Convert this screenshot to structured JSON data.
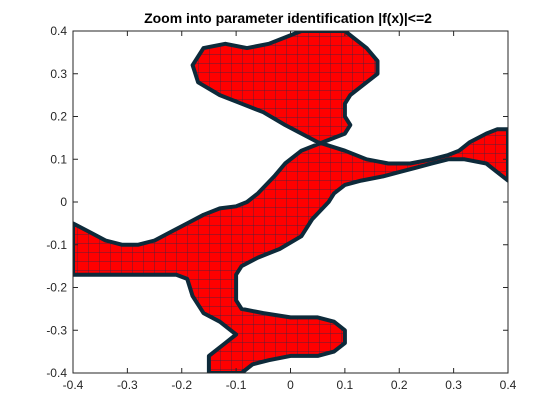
{
  "chart_data": {
    "type": "area",
    "title": "Zoom into parameter identification |f(x)|<=2",
    "xlabel": "",
    "ylabel": "",
    "xlim": [
      -0.4,
      0.4
    ],
    "ylim": [
      -0.4,
      0.4
    ],
    "x_ticks": [
      -0.4,
      -0.3,
      -0.2,
      -0.1,
      0,
      0.1,
      0.2,
      0.3,
      0.4
    ],
    "x_tick_labels": [
      "-0.4",
      "-0.3",
      "-0.2",
      "-0.1",
      "0",
      "0.1",
      "0.2",
      "0.3",
      "0.4"
    ],
    "y_ticks": [
      -0.4,
      -0.3,
      -0.2,
      -0.1,
      0,
      0.1,
      0.2,
      0.3,
      0.4
    ],
    "y_tick_labels": [
      "-0.4",
      "-0.3",
      "-0.2",
      "-0.1",
      "0",
      "0.1",
      "0.2",
      "0.3",
      "0.4"
    ],
    "grid": false,
    "fill_color": "#ff0000",
    "box_edge_color": "#1f2a44",
    "boundary_color": "#0d2a3a",
    "region": {
      "name": "|f(x)|<=2",
      "boundary": [
        [
          -0.4,
          -0.05
        ],
        [
          -0.37,
          -0.07
        ],
        [
          -0.34,
          -0.09
        ],
        [
          -0.31,
          -0.1
        ],
        [
          -0.28,
          -0.1
        ],
        [
          -0.25,
          -0.09
        ],
        [
          -0.22,
          -0.07
        ],
        [
          -0.19,
          -0.05
        ],
        [
          -0.16,
          -0.03
        ],
        [
          -0.13,
          -0.015
        ],
        [
          -0.1,
          -0.01
        ],
        [
          -0.08,
          0.0
        ],
        [
          -0.06,
          0.02
        ],
        [
          -0.03,
          0.06
        ],
        [
          -0.01,
          0.09
        ],
        [
          0.02,
          0.12
        ],
        [
          0.06,
          0.14
        ],
        [
          0.1,
          0.16
        ],
        [
          0.11,
          0.18
        ],
        [
          0.1,
          0.2
        ],
        [
          0.1,
          0.23
        ],
        [
          0.11,
          0.25
        ],
        [
          0.14,
          0.28
        ],
        [
          0.16,
          0.3
        ],
        [
          0.16,
          0.33
        ],
        [
          0.14,
          0.36
        ],
        [
          0.12,
          0.38
        ],
        [
          0.1,
          0.4
        ],
        [
          0.02,
          0.4
        ],
        [
          -0.04,
          0.37
        ],
        [
          -0.08,
          0.36
        ],
        [
          -0.12,
          0.37
        ],
        [
          -0.16,
          0.36
        ],
        [
          -0.18,
          0.32
        ],
        [
          -0.17,
          0.28
        ],
        [
          -0.13,
          0.25
        ],
        [
          -0.09,
          0.23
        ],
        [
          -0.05,
          0.21
        ],
        [
          -0.01,
          0.18
        ],
        [
          0.05,
          0.14
        ],
        [
          0.1,
          0.12
        ],
        [
          0.14,
          0.1
        ],
        [
          0.18,
          0.09
        ],
        [
          0.22,
          0.09
        ],
        [
          0.26,
          0.1
        ],
        [
          0.29,
          0.11
        ],
        [
          0.31,
          0.12
        ],
        [
          0.33,
          0.14
        ],
        [
          0.36,
          0.16
        ],
        [
          0.38,
          0.17
        ],
        [
          0.4,
          0.17
        ],
        [
          0.4,
          0.05
        ],
        [
          0.38,
          0.07
        ],
        [
          0.36,
          0.09
        ],
        [
          0.32,
          0.1
        ],
        [
          0.29,
          0.1
        ],
        [
          0.26,
          0.09
        ],
        [
          0.23,
          0.08
        ],
        [
          0.2,
          0.07
        ],
        [
          0.17,
          0.06
        ],
        [
          0.13,
          0.05
        ],
        [
          0.1,
          0.04
        ],
        [
          0.08,
          0.02
        ],
        [
          0.07,
          0.0
        ],
        [
          0.04,
          -0.04
        ],
        [
          0.02,
          -0.08
        ],
        [
          -0.02,
          -0.11
        ],
        [
          -0.06,
          -0.13
        ],
        [
          -0.09,
          -0.15
        ],
        [
          -0.1,
          -0.17
        ],
        [
          -0.1,
          -0.2
        ],
        [
          -0.1,
          -0.23
        ],
        [
          -0.09,
          -0.25
        ],
        [
          -0.05,
          -0.26
        ],
        [
          0.0,
          -0.27
        ],
        [
          0.05,
          -0.27
        ],
        [
          0.08,
          -0.28
        ],
        [
          0.1,
          -0.3
        ],
        [
          0.1,
          -0.33
        ],
        [
          0.08,
          -0.35
        ],
        [
          0.05,
          -0.36
        ],
        [
          0.0,
          -0.36
        ],
        [
          -0.04,
          -0.37
        ],
        [
          -0.07,
          -0.38
        ],
        [
          -0.09,
          -0.4
        ],
        [
          -0.15,
          -0.4
        ],
        [
          -0.15,
          -0.36
        ],
        [
          -0.12,
          -0.33
        ],
        [
          -0.1,
          -0.31
        ],
        [
          -0.13,
          -0.28
        ],
        [
          -0.16,
          -0.26
        ],
        [
          -0.18,
          -0.22
        ],
        [
          -0.19,
          -0.18
        ],
        [
          -0.21,
          -0.17
        ],
        [
          -0.24,
          -0.17
        ],
        [
          -0.28,
          -0.17
        ],
        [
          -0.32,
          -0.17
        ],
        [
          -0.36,
          -0.17
        ],
        [
          -0.4,
          -0.17
        ]
      ]
    }
  }
}
